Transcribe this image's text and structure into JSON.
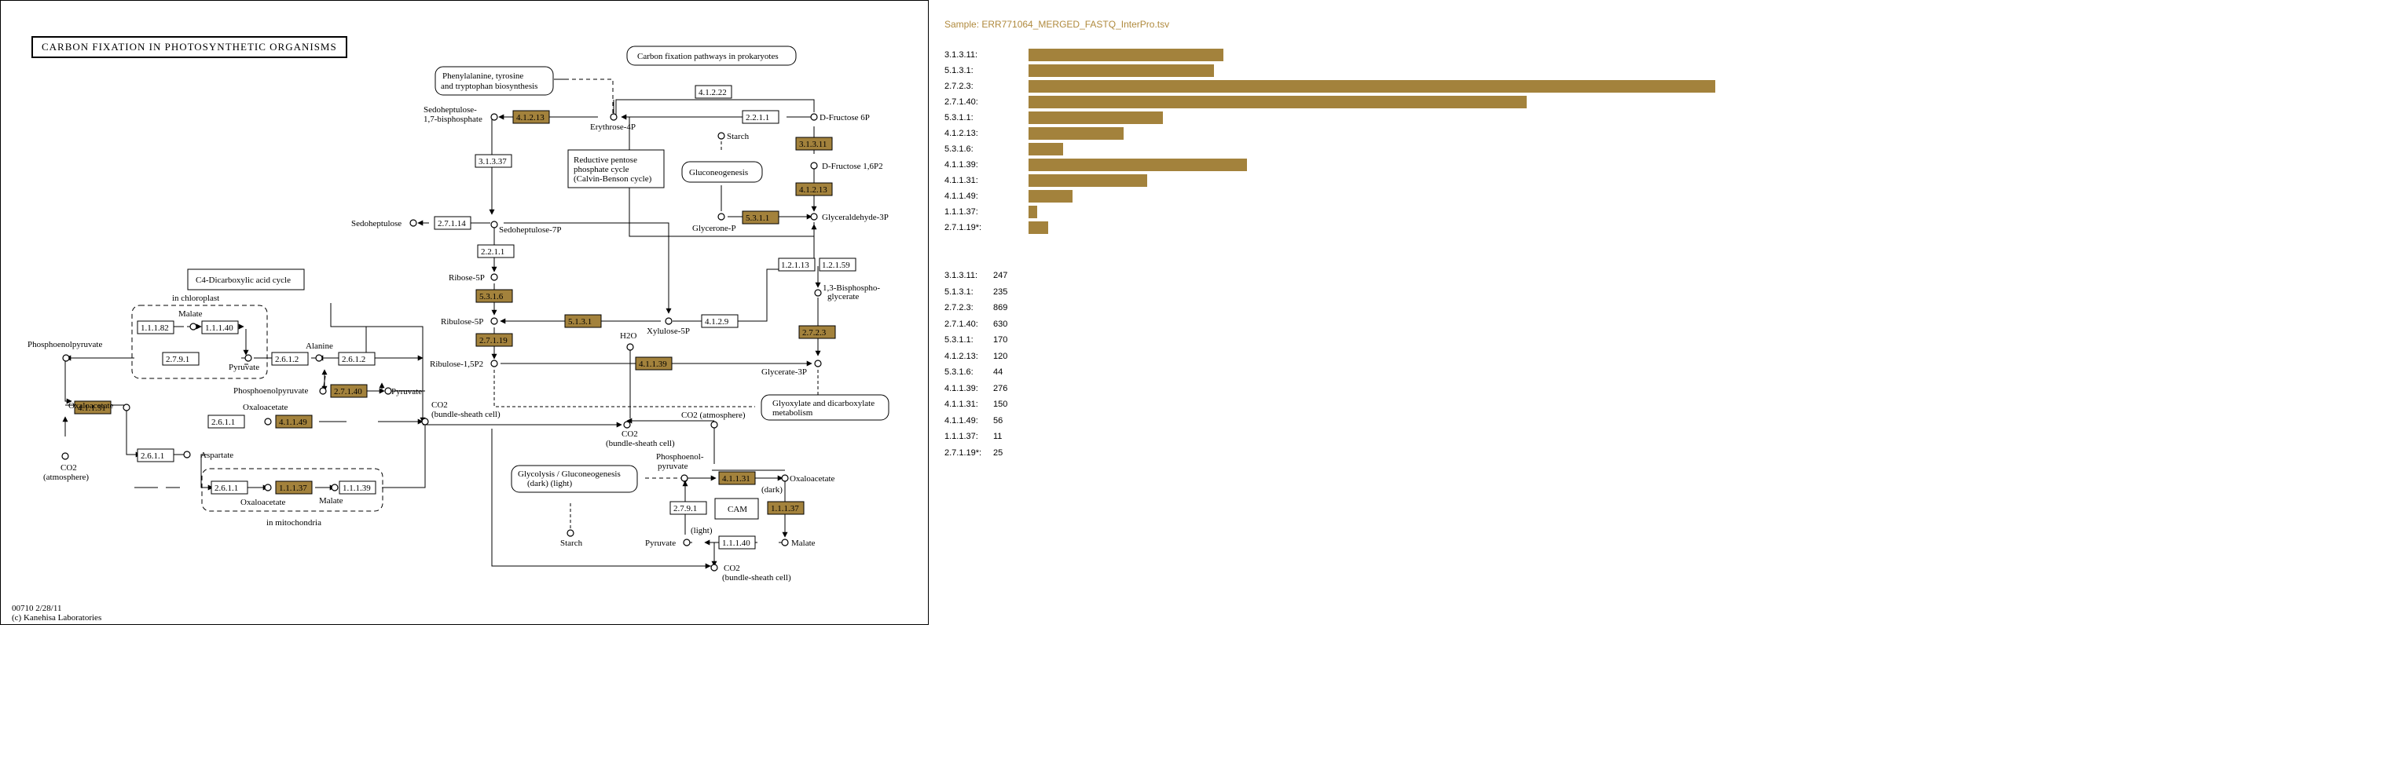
{
  "map": {
    "title": "CARBON FIXATION IN PHOTOSYNTHETIC ORGANISMS",
    "footer_id": "00710 2/28/11",
    "footer_copyright": "(c) Kanehisa Laboratories",
    "highlight_color": "#a3823c",
    "enzymes": {
      "e4_1_2_13_top": "4.1.2.13",
      "e2_2_1_1_top": "2.2.1.1",
      "e4_1_2_22": "4.1.2.22",
      "e3_1_3_37": "3.1.3.37",
      "e2_7_1_14": "2.7.1.14",
      "e2_2_1_1_mid": "2.2.1.1",
      "e3_1_3_11": "3.1.3.11",
      "e4_1_2_13_right": "4.1.2.13",
      "e5_3_1_1": "5.3.1.1",
      "e1_2_1_13": "1.2.1.13",
      "e1_2_1_59": "1.2.1.59",
      "e2_7_2_3": "2.7.2.3",
      "e5_3_1_6": "5.3.1.6",
      "e5_1_3_1": "5.1.3.1",
      "e2_7_1_19": "2.7.1.19",
      "e4_1_2_9": "4.1.2.9",
      "e4_1_1_39": "4.1.1.39",
      "e1_1_1_82": "1.1.1.82",
      "e1_1_1_40_a": "1.1.1.40",
      "e2_7_9_1_a": "2.7.9.1",
      "e2_6_1_2_a": "2.6.1.2",
      "e2_6_1_2_b": "2.6.1.2",
      "e2_7_1_40": "2.7.1.40",
      "e4_1_1_31_a": "4.1.1.31",
      "e2_6_1_1_a": "2.6.1.1",
      "e4_1_1_49": "4.1.1.49",
      "e2_6_1_1_b": "2.6.1.1",
      "e2_6_1_1_c": "2.6.1.1",
      "e1_1_1_37_a": "1.1.1.37",
      "e1_1_1_39": "1.1.1.39",
      "e4_1_1_31_b": "4.1.1.31",
      "e2_7_9_1_b": "2.7.9.1",
      "e1_1_1_37_b": "1.1.1.37",
      "e1_1_1_40_b": "1.1.1.40"
    },
    "labels": {
      "carbon_fixation_prokaryotes": "Carbon fixation pathways in prokaryotes",
      "phe_tyr_trp_1": "Phenylalanine, tyrosine",
      "phe_tyr_trp_2": "and tryptophan biosynthesis",
      "sedoheptulose_bp_1": "Sedoheptulose-",
      "sedoheptulose_bp_2": "1,7-bisphosphate",
      "erythrose_4p": "Erythrose-4P",
      "d_fructose_6p": "D-Fructose 6P",
      "d_fructose_16p": "D-Fructose 1,6P2",
      "starch_top": "Starch",
      "reductive_1": "Reductive pentose",
      "reductive_2": "phosphate cycle",
      "reductive_3": "(Calvin-Benson cycle)",
      "gluconeogenesis": "Gluconeogenesis",
      "sedoheptulose": "Sedoheptulose",
      "sedoheptulose_7p": "Sedoheptulose-7P",
      "glycerone_p": "Glycerone-P",
      "glyceraldehyde_3p": "Glyceraldehyde-3P",
      "bisphospho_1": "1,3-Bisphospho-",
      "bisphospho_2": "glycerate",
      "c4_cycle": "C4-Dicarboxylic acid cycle",
      "in_chloroplast": "in chloroplast",
      "malate_chloro": "Malate",
      "ribose_5p": "Ribose-5P",
      "ribulose_5p": "Ribulose-5P",
      "xylulose_5p": "Xylulose-5P",
      "h2o": "H2O",
      "ribulose_15p2": "Ribulose-1,5P2",
      "glycerate_3p": "Glycerate-3P",
      "phosphoenolpyruvate_left": "Phosphoenolpyruvate",
      "alanine": "Alanine",
      "pyruvate_chloro": "Pyruvate",
      "oxaloacetate_a": "Oxaloacetate",
      "phosphoenolpyruvate_mid": "Phosphoenolpyruvate",
      "pyruvate_mid": "Pyruvate",
      "oxaloacetate_b": "Oxaloacetate",
      "co2_bundle_1": "CO2",
      "co2_bundle_2": "(bundle-sheath cell)",
      "co2_bundle_mid_1": "CO2",
      "co2_bundle_mid_2": "(bundle-sheath cell)",
      "co2_atmosphere_mid": "CO2 (atmosphere)",
      "glyoxylate_1": "Glyoxylate and dicarboxylate",
      "glyoxylate_2": "metabolism",
      "co2_atmos_left_1": "CO2",
      "co2_atmos_left_2": "(atmosphere)",
      "aspartate": "Aspartate",
      "oxaloacetate_mito": "Oxaloacetate",
      "malate_mito": "Malate",
      "in_mitochondria": "in mitochondria",
      "glycolysis_1": "Glycolysis / Gluconeogenesis",
      "glycolysis_2": "(dark)                  (light)",
      "pep_cam_1": "Phosphoenol-",
      "pep_cam_2": "pyruvate",
      "oxaloacetate_cam": "Oxaloacetate",
      "dark": "(dark)",
      "cam": "CAM",
      "starch_bottom": "Starch",
      "light": "(light)",
      "pyruvate_cam": "Pyruvate",
      "malate_cam": "Malate",
      "co2_bs_bottom_1": "CO2",
      "co2_bs_bottom_2": "(bundle-sheath cell)"
    }
  },
  "panel": {
    "sample": "Sample: ERR771064_MERGED_FASTQ_InterPro.tsv",
    "bar_color": "#a3823c",
    "bars": [
      {
        "label": "3.1.3.11:",
        "value": 247
      },
      {
        "label": "5.1.3.1:",
        "value": 235
      },
      {
        "label": "2.7.2.3:",
        "value": 869
      },
      {
        "label": "2.7.1.40:",
        "value": 630
      },
      {
        "label": "5.3.1.1:",
        "value": 170
      },
      {
        "label": "4.1.2.13:",
        "value": 120
      },
      {
        "label": "5.3.1.6:",
        "value": 44
      },
      {
        "label": "4.1.1.39:",
        "value": 276
      },
      {
        "label": "4.1.1.31:",
        "value": 150
      },
      {
        "label": "4.1.1.49:",
        "value": 56
      },
      {
        "label": "1.1.1.37:",
        "value": 11
      },
      {
        "label": "2.7.1.19*:",
        "value": 25
      }
    ],
    "counts": [
      {
        "label": "3.1.3.11:",
        "value": "247"
      },
      {
        "label": "5.1.3.1:",
        "value": "235"
      },
      {
        "label": "2.7.2.3:",
        "value": "869"
      },
      {
        "label": "2.7.1.40:",
        "value": "630"
      },
      {
        "label": "5.3.1.1:",
        "value": "170"
      },
      {
        "label": "4.1.2.13:",
        "value": "120"
      },
      {
        "label": "5.3.1.6:",
        "value": "44"
      },
      {
        "label": "4.1.1.39:",
        "value": "276"
      },
      {
        "label": "4.1.1.31:",
        "value": "150"
      },
      {
        "label": "4.1.1.49:",
        "value": "56"
      },
      {
        "label": "1.1.1.37:",
        "value": "11"
      },
      {
        "label": "2.7.1.19*:",
        "value": "25"
      }
    ]
  }
}
